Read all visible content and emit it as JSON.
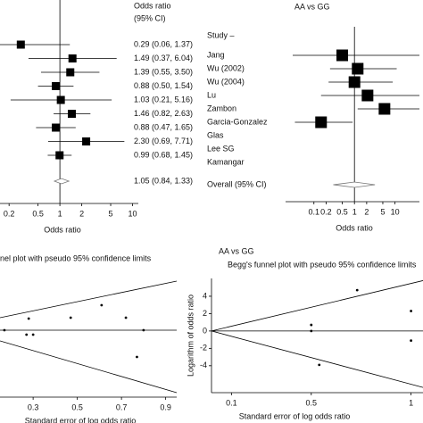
{
  "chart_data": [
    {
      "type": "forest",
      "header": [
        "Odds ratio",
        "(95% CI)"
      ],
      "values": [
        0.29,
        1.49,
        1.39,
        0.88,
        1.03,
        1.46,
        0.88,
        2.3,
        0.99
      ],
      "lower": [
        0.06,
        0.37,
        0.55,
        0.5,
        0.21,
        0.82,
        0.47,
        0.69,
        0.68
      ],
      "upper": [
        1.37,
        6.04,
        3.5,
        1.54,
        5.16,
        2.63,
        1.65,
        7.71,
        1.45
      ],
      "value_labels": [
        "0.29 (0.06, 1.37)",
        "1.49 (0.37, 6.04)",
        "1.39 (0.55, 3.50)",
        "0.88 (0.50, 1.54)",
        "1.03 (0.21, 5.16)",
        "1.46 (0.82, 2.63)",
        "0.88 (0.47, 1.65)",
        "2.30 (0.69, 7.71)",
        "0.99 (0.68, 1.45)"
      ],
      "overall": {
        "value": 1.05,
        "lower": 0.84,
        "upper": 1.33,
        "value_label": "1.05 (0.84, 1.33)"
      },
      "reference": 1,
      "log": true,
      "xlim": [
        0.15,
        12
      ],
      "xticks": [
        0.2,
        0.5,
        1,
        2,
        5,
        10
      ],
      "xlabel": "Odds ratio",
      "color": "#000000"
    },
    {
      "type": "forest",
      "title": "AA vs GG",
      "column_header": "Study –",
      "categories": [
        "Jang",
        "Wu (2002)",
        "Wu (2004)",
        "Lu",
        "Zambon",
        "Garcia-Gonzalez",
        "Glas",
        "Lee SG",
        "Kamangar"
      ],
      "values": [
        0.5,
        1.2,
        1.0,
        2.1,
        5.5,
        0.15,
        null,
        null,
        null
      ],
      "lower": [
        0.03,
        0.25,
        0.23,
        0.15,
        1.2,
        0.034,
        null,
        null,
        null
      ],
      "upper": [
        40,
        11,
        8.8,
        40,
        40,
        0.9,
        null,
        null,
        null
      ],
      "overall": {
        "label": "Overall (95% CI)",
        "value": 1.0,
        "lower": 0.3,
        "upper": 3.2
      },
      "reference": 1,
      "log": true,
      "xlim": [
        0.02,
        40
      ],
      "xticks": [
        0.1,
        0.2,
        0.5,
        1,
        2,
        5,
        10
      ],
      "xlabel": "Odds ratio",
      "color": "#000000"
    },
    {
      "type": "funnel",
      "subtitle": "nel plot with pseudo 95% confidence limits",
      "x": [
        0.17,
        0.28,
        0.27,
        0.3,
        0.47,
        0.61,
        0.72,
        0.77,
        0.8
      ],
      "y": [
        0.0,
        0.52,
        -0.2,
        -0.2,
        0.56,
        1.12,
        0.56,
        -1.2,
        0.0
      ],
      "summary": 0.0,
      "limit_x": [
        0.15,
        0.95
      ],
      "limit_upper": [
        0.56,
        2.2
      ],
      "limit_lower": [
        -0.48,
        -2.8
      ],
      "xlim": [
        0.15,
        0.95
      ],
      "ylim": [
        -3.0,
        2.8
      ],
      "xticks": [
        0.3,
        0.5,
        0.7,
        0.9
      ],
      "xlabel": "Standard error of log odds ratio",
      "color": "#000000"
    },
    {
      "type": "funnel",
      "title": "AA vs GG",
      "subtitle": "Begg's funnel plot with pseudo 95% confidence limits",
      "x": [
        0.73,
        0.5,
        0.5,
        0.54,
        1.0,
        1.0
      ],
      "y": [
        4.7,
        0.7,
        0.0,
        -3.9,
        2.3,
        -1.1
      ],
      "summary": 0.0,
      "limit_x": [
        0,
        1.06
      ],
      "limit_upper": [
        0,
        5.8
      ],
      "limit_lower": [
        0,
        -6.5
      ],
      "xlim": [
        0,
        1.06
      ],
      "ylim": [
        -7.1,
        6.05
      ],
      "xticks": [
        0.1,
        0.5,
        1
      ],
      "yticks": [
        -4,
        -2,
        0,
        2,
        4
      ],
      "xlabel": "Standard error of log odds ratio",
      "ylabel": "Logarithm of odds ratio",
      "color": "#000000"
    }
  ]
}
